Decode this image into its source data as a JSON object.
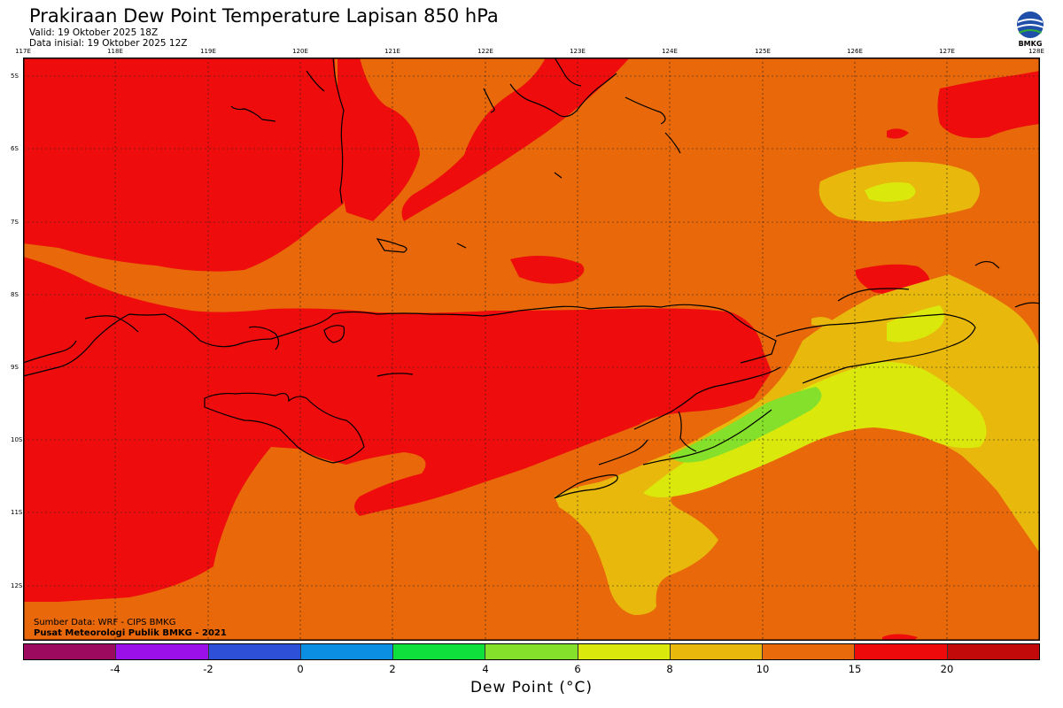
{
  "title": "Prakiraan Dew Point Temperature Lapisan 850 hPa",
  "valid": "Valid: 19 Oktober 2025 18Z",
  "init": "Data inisial: 19 Oktober 2025 12Z",
  "logo_text": "BMKG",
  "lon_labels": [
    "117E",
    "118E",
    "119E",
    "120E",
    "121E",
    "122E",
    "123E",
    "124E",
    "125E",
    "126E",
    "127E",
    "128E"
  ],
  "lat_labels": [
    "5S",
    "6S",
    "7S",
    "8S",
    "9S",
    "10S",
    "11S",
    "12S"
  ],
  "source_line1": "Sumber Data: WRF - CIPS BMKG",
  "source_line2": "Pusat Meteorologi Publik BMKG - 2021",
  "colorbar": {
    "colors": [
      "#9b0a5e",
      "#9b10e8",
      "#2e50d8",
      "#0b8fe2",
      "#10e03c",
      "#84e02a",
      "#dbe80c",
      "#e8b80c",
      "#e86a0a",
      "#ee0a0a",
      "#c20a0a"
    ],
    "ticks": [
      "-4",
      "-2",
      "0",
      "2",
      "4",
      "6",
      "8",
      "10",
      "15",
      "20"
    ],
    "label": "Dew Point (°C)"
  },
  "fill_colors": {
    "base": "#e8680a",
    "red": "#ee0c0c",
    "amber": "#e8b80c",
    "yellow": "#dbe80c",
    "green": "#84e02a"
  }
}
